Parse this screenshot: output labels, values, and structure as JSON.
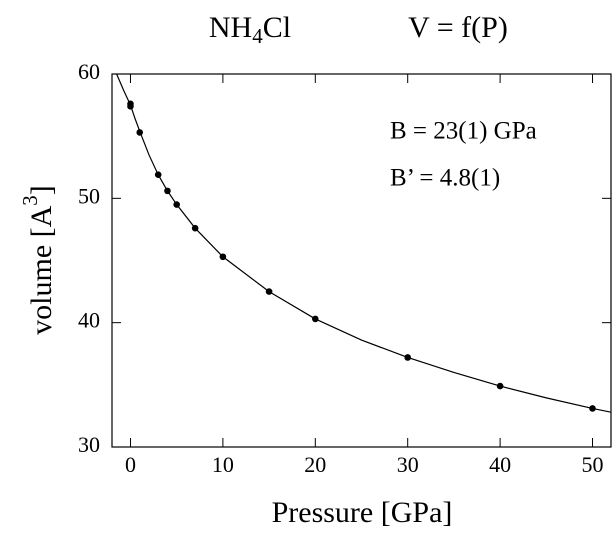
{
  "chart_data": {
    "type": "scatter",
    "title": [
      "NH",
      "4",
      "Cl"
    ],
    "subtitle": "V = f(P)",
    "x_label": "Pressure [GPa]",
    "y_label": [
      "volume [A",
      "3",
      "]"
    ],
    "annotations": [
      "B = 23(1) GPa",
      "B’ = 4.8(1)"
    ],
    "x": [
      0,
      0,
      1,
      3,
      4,
      5,
      7,
      10,
      15,
      20,
      30,
      40,
      50
    ],
    "values": [
      57.6,
      57.4,
      55.3,
      51.9,
      50.6,
      49.5,
      47.6,
      45.3,
      42.5,
      40.3,
      37.2,
      34.9,
      33.1
    ],
    "color": "#000000",
    "fit": {
      "type": "line",
      "color": "#000000",
      "x": [
        -1.5,
        -0.75,
        0,
        0.5,
        1,
        2,
        3,
        4,
        5,
        7,
        10,
        15,
        20,
        25,
        30,
        35,
        40,
        45,
        50,
        52
      ],
      "values": [
        60,
        58.7,
        57.5,
        56.4,
        55.4,
        53.5,
        51.9,
        50.6,
        49.5,
        47.6,
        45.3,
        42.5,
        40.3,
        38.6,
        37.2,
        36.0,
        34.9,
        33.95,
        33.1,
        32.8
      ]
    },
    "xlim": [
      -2,
      52
    ],
    "ylim": [
      30,
      60
    ],
    "xticks": [
      0,
      10,
      20,
      30,
      40,
      50
    ],
    "yticks": [
      30,
      40,
      50,
      60
    ]
  }
}
